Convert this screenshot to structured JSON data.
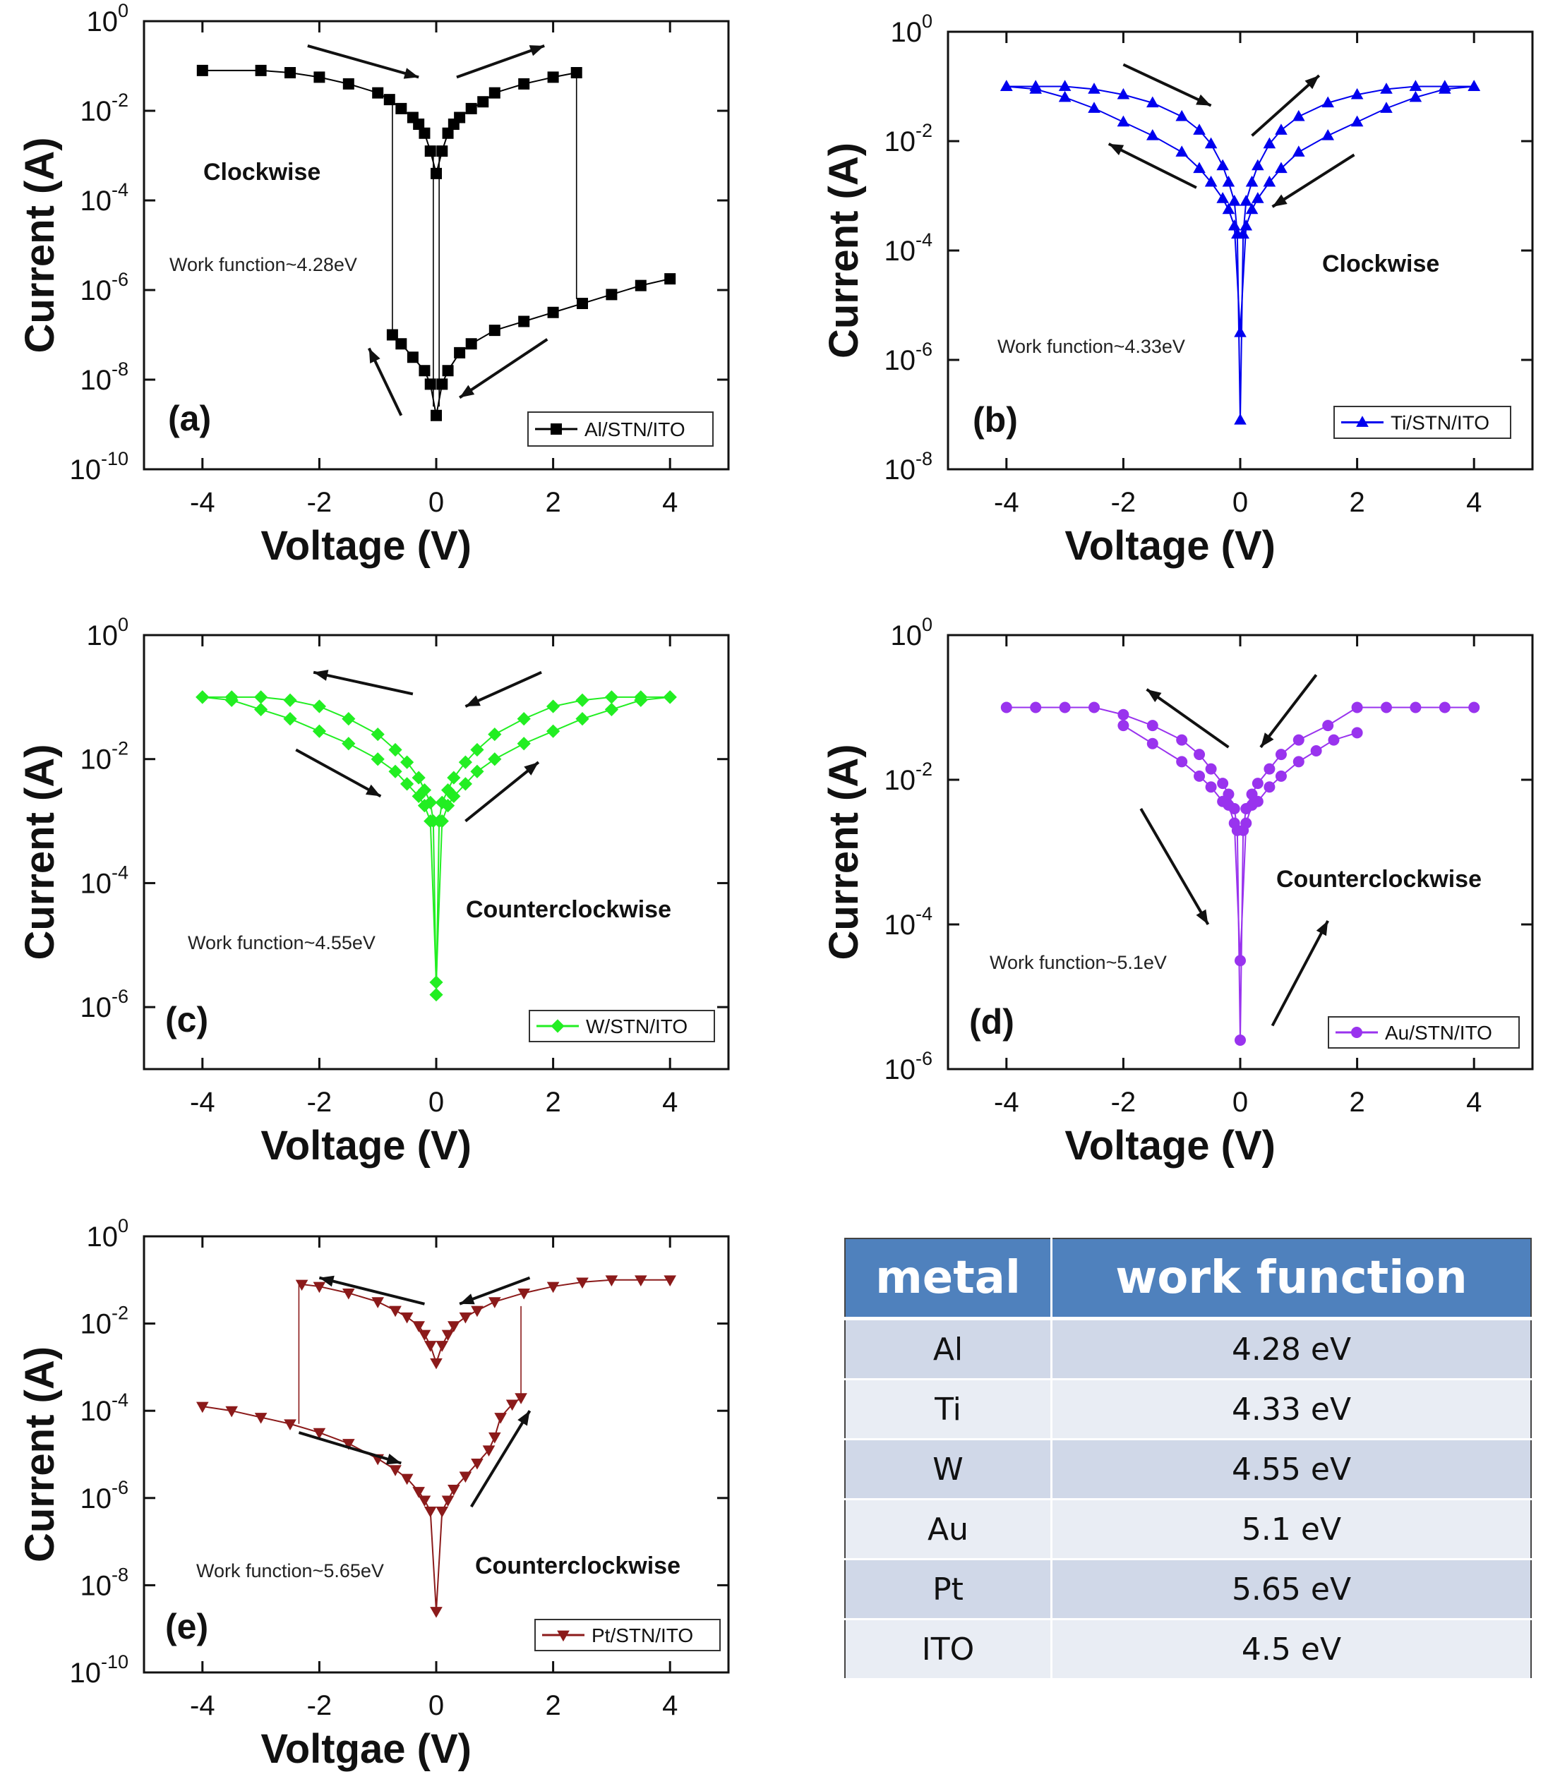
{
  "chart_data": [
    {
      "id": "a",
      "type": "scatter",
      "panel_label": "(a)",
      "xlabel": "Voltage (V)",
      "ylabel": "Current (A)",
      "xlim": [
        -5,
        5
      ],
      "ylim_log10": [
        -10,
        0
      ],
      "xticks": [
        -4,
        -2,
        0,
        2,
        4
      ],
      "yticks_log10": [
        0,
        -2,
        -4,
        -6,
        -8,
        -10
      ],
      "direction": "Clockwise",
      "work_function_text": "Work function~4.28eV",
      "legend": "Al/STN/ITO",
      "color": "#000000",
      "marker": "square",
      "direction_pos": "upper-left",
      "wf_pos": "left-middle",
      "series": [
        {
          "name": "Al/STN/ITO LRS",
          "x": [
            -4,
            -3,
            -2.5,
            -2,
            -1.5,
            -1,
            -0.8,
            -0.6,
            -0.4,
            -0.3,
            -0.2,
            -0.1,
            0,
            0.1,
            0.2,
            0.3,
            0.4,
            0.6,
            0.8,
            1,
            1.5,
            2,
            2.4
          ],
          "log10_y": [
            -1.1,
            -1.1,
            -1.15,
            -1.25,
            -1.4,
            -1.6,
            -1.75,
            -1.95,
            -2.15,
            -2.3,
            -2.5,
            -2.9,
            -3.4,
            -2.9,
            -2.5,
            -2.3,
            -2.15,
            -1.95,
            -1.8,
            -1.6,
            -1.4,
            -1.25,
            -1.15
          ]
        },
        {
          "name": "Al/STN/ITO HRS",
          "x": [
            -0.75,
            -0.6,
            -0.4,
            -0.2,
            -0.1,
            0,
            0.1,
            0.2,
            0.4,
            0.6,
            1,
            1.5,
            2,
            2.5,
            3,
            3.5,
            4
          ],
          "log10_y": [
            -7.0,
            -7.2,
            -7.5,
            -7.8,
            -8.1,
            -8.8,
            -8.1,
            -7.8,
            -7.4,
            -7.2,
            -6.9,
            -6.7,
            -6.5,
            -6.3,
            -6.1,
            -5.9,
            -5.75
          ]
        }
      ],
      "switching_lines": [
        {
          "x": -0.75,
          "log10_y_from": -1.75,
          "log10_y_to": -7.0
        },
        {
          "x": 2.4,
          "log10_y_from": -1.15,
          "log10_y_to": -6.2
        },
        {
          "x": -0.05,
          "log10_y_from": -3.0,
          "log10_y_to": -8.6
        },
        {
          "x": 0.05,
          "log10_y_from": -3.0,
          "log10_y_to": -8.6
        }
      ]
    },
    {
      "id": "b",
      "type": "scatter",
      "panel_label": "(b)",
      "xlabel": "Voltage (V)",
      "ylabel": "Current (A)",
      "xlim": [
        -5,
        5
      ],
      "ylim_log10": [
        -8,
        0
      ],
      "xticks": [
        -4,
        -2,
        0,
        2,
        4
      ],
      "yticks_log10": [
        0,
        -2,
        -4,
        -6,
        -8
      ],
      "direction": "Clockwise",
      "work_function_text": "Work function~4.33eV",
      "legend": "Ti/STN/ITO",
      "color": "#0000ee",
      "marker": "triangle",
      "direction_pos": "right-middle",
      "wf_pos": "left-lower",
      "series": [
        {
          "name": "Ti/STN/ITO sweep 1",
          "x": [
            -4,
            -3.5,
            -3,
            -2.5,
            -2,
            -1.5,
            -1,
            -0.7,
            -0.5,
            -0.3,
            -0.2,
            -0.1,
            -0.05,
            0,
            0.05,
            0.1,
            0.2,
            0.3,
            0.5,
            0.7,
            1,
            1.5,
            2,
            2.5,
            3,
            3.5,
            4
          ],
          "log10_y": [
            -1,
            -1,
            -1,
            -1.05,
            -1.15,
            -1.3,
            -1.55,
            -1.8,
            -2.05,
            -2.45,
            -2.75,
            -3.1,
            -3.7,
            -7.1,
            -3.7,
            -3.1,
            -2.75,
            -2.45,
            -2.05,
            -1.8,
            -1.55,
            -1.3,
            -1.15,
            -1.05,
            -1,
            -1,
            -1
          ]
        },
        {
          "name": "Ti/STN/ITO sweep 2",
          "x": [
            -4,
            -3.5,
            -3,
            -2.5,
            -2,
            -1.5,
            -1,
            -0.7,
            -0.5,
            -0.3,
            -0.2,
            -0.1,
            0,
            0.1,
            0.2,
            0.3,
            0.5,
            0.7,
            1,
            1.5,
            2,
            2.5,
            3,
            3.5,
            4
          ],
          "log10_y": [
            -1,
            -1.05,
            -1.2,
            -1.4,
            -1.65,
            -1.9,
            -2.2,
            -2.5,
            -2.75,
            -3.05,
            -3.25,
            -3.55,
            -5.5,
            -3.55,
            -3.25,
            -3.05,
            -2.75,
            -2.5,
            -2.2,
            -1.9,
            -1.65,
            -1.4,
            -1.2,
            -1.05,
            -1
          ]
        }
      ]
    },
    {
      "id": "c",
      "type": "scatter",
      "panel_label": "(c)",
      "xlabel": "Voltage (V)",
      "ylabel": "Current (A)",
      "xlim": [
        -5,
        5
      ],
      "ylim_log10": [
        -7,
        0
      ],
      "xticks": [
        -4,
        -2,
        0,
        2,
        4
      ],
      "yticks_log10": [
        0,
        -2,
        -4,
        -6
      ],
      "direction": "Counterclockwise",
      "work_function_text": "Work function~4.55eV",
      "legend": "W/STN/ITO",
      "color": "#22ee22",
      "marker": "diamond",
      "direction_pos": "right-middle",
      "wf_pos": "left-lower",
      "series": [
        {
          "name": "W/STN/ITO sweep 1",
          "x": [
            -4,
            -3.5,
            -3,
            -2.5,
            -2,
            -1.5,
            -1,
            -0.7,
            -0.5,
            -0.3,
            -0.2,
            -0.1,
            -0.05,
            0,
            0.05,
            0.1,
            0.2,
            0.3,
            0.5,
            0.7,
            1,
            1.5,
            2,
            2.5,
            3,
            3.5,
            4
          ],
          "log10_y": [
            -1,
            -1,
            -1,
            -1.05,
            -1.15,
            -1.35,
            -1.6,
            -1.85,
            -2.05,
            -2.3,
            -2.5,
            -2.7,
            -3.0,
            -5.8,
            -3.0,
            -2.7,
            -2.5,
            -2.3,
            -2.05,
            -1.85,
            -1.6,
            -1.35,
            -1.15,
            -1.05,
            -1,
            -1,
            -1
          ]
        },
        {
          "name": "W/STN/ITO sweep 2",
          "x": [
            -4,
            -3.5,
            -3,
            -2.5,
            -2,
            -1.5,
            -1,
            -0.7,
            -0.5,
            -0.3,
            -0.2,
            -0.1,
            0,
            0.1,
            0.2,
            0.3,
            0.5,
            0.7,
            1,
            1.5,
            2,
            2.5,
            3,
            3.5,
            4
          ],
          "log10_y": [
            -1,
            -1.05,
            -1.2,
            -1.35,
            -1.55,
            -1.75,
            -2.0,
            -2.2,
            -2.4,
            -2.6,
            -2.75,
            -3.0,
            -5.6,
            -3.0,
            -2.75,
            -2.6,
            -2.4,
            -2.2,
            -2.0,
            -1.75,
            -1.55,
            -1.35,
            -1.2,
            -1.05,
            -1
          ]
        }
      ]
    },
    {
      "id": "d",
      "type": "scatter",
      "panel_label": "(d)",
      "xlabel": "Voltage (V)",
      "ylabel": "Current (A)",
      "xlim": [
        -5,
        5
      ],
      "ylim_log10": [
        -6,
        0
      ],
      "xticks": [
        -4,
        -2,
        0,
        2,
        4
      ],
      "yticks_log10": [
        0,
        -2,
        -4,
        -6
      ],
      "direction": "Counterclockwise",
      "work_function_text": "Work function~5.1eV",
      "legend": "Au/STN/ITO",
      "color": "#9933ee",
      "marker": "circle",
      "direction_pos": "right-middle",
      "wf_pos": "left-lower",
      "series": [
        {
          "name": "Au/STN/ITO sweep 1",
          "x": [
            -4,
            -3.5,
            -3,
            -2.5,
            -2,
            -1.5,
            -1,
            -0.7,
            -0.5,
            -0.3,
            -0.2,
            -0.1,
            -0.05,
            0,
            0.05,
            0.1,
            0.2,
            0.3,
            0.5,
            0.7,
            1,
            1.5,
            2,
            2.5,
            3,
            3.5,
            4
          ],
          "log10_y": [
            -1,
            -1,
            -1,
            -1,
            -1.1,
            -1.25,
            -1.45,
            -1.65,
            -1.85,
            -2.05,
            -2.2,
            -2.4,
            -2.7,
            -5.6,
            -2.7,
            -2.4,
            -2.2,
            -2.05,
            -1.85,
            -1.65,
            -1.45,
            -1.25,
            -1,
            -1,
            -1,
            -1,
            -1
          ]
        },
        {
          "name": "Au/STN/ITO sweep 2",
          "x": [
            -2,
            -1.5,
            -1,
            -0.7,
            -0.5,
            -0.3,
            -0.2,
            -0.1,
            0,
            0.1,
            0.2,
            0.3,
            0.5,
            0.7,
            1,
            1.3,
            1.6,
            2
          ],
          "log10_y": [
            -1.25,
            -1.5,
            -1.75,
            -1.95,
            -2.1,
            -2.3,
            -2.35,
            -2.6,
            -4.5,
            -2.6,
            -2.35,
            -2.3,
            -2.1,
            -1.95,
            -1.75,
            -1.6,
            -1.45,
            -1.35
          ]
        }
      ]
    },
    {
      "id": "e",
      "type": "scatter",
      "panel_label": "(e)",
      "xlabel": "Voltgae (V)",
      "ylabel": "Current (A)",
      "xlim": [
        -5,
        5
      ],
      "ylim_log10": [
        -10,
        0
      ],
      "xticks": [
        -4,
        -2,
        0,
        2,
        4
      ],
      "yticks_log10": [
        0,
        -2,
        -4,
        -6,
        -8,
        -10
      ],
      "direction": "Counterclockwise",
      "work_function_text": "Work function~5.65eV",
      "legend": "Pt/STN/ITO",
      "color": "#8b1a1a",
      "marker": "triangle-down",
      "direction_pos": "right-lower",
      "wf_pos": "left-lower",
      "series": [
        {
          "name": "Pt/STN/ITO LRS",
          "x": [
            -2.3,
            -2,
            -1.5,
            -1,
            -0.7,
            -0.5,
            -0.3,
            -0.2,
            -0.1,
            0,
            0.1,
            0.2,
            0.3,
            0.5,
            0.7,
            1,
            1.5,
            2,
            2.5,
            3,
            3.5,
            4
          ],
          "log10_y": [
            -1.1,
            -1.15,
            -1.3,
            -1.5,
            -1.7,
            -1.85,
            -2.05,
            -2.25,
            -2.5,
            -2.9,
            -2.5,
            -2.25,
            -2.05,
            -1.85,
            -1.7,
            -1.5,
            -1.3,
            -1.15,
            -1.05,
            -1,
            -1,
            -1
          ]
        },
        {
          "name": "Pt/STN/ITO HRS",
          "x": [
            -4,
            -3.5,
            -3,
            -2.5,
            -2,
            -1.5,
            -1,
            -0.7,
            -0.5,
            -0.3,
            -0.2,
            -0.1,
            0,
            0.1,
            0.2,
            0.3,
            0.5,
            0.7,
            0.9,
            1.0,
            1.1,
            1.3,
            1.45
          ],
          "log10_y": [
            -3.9,
            -4.0,
            -4.15,
            -4.3,
            -4.5,
            -4.75,
            -5.1,
            -5.35,
            -5.55,
            -5.85,
            -6.05,
            -6.3,
            -8.6,
            -6.3,
            -6.05,
            -5.8,
            -5.5,
            -5.2,
            -4.9,
            -4.6,
            -4.15,
            -3.85,
            -3.7
          ]
        }
      ],
      "switching_lines": [
        {
          "x": -2.35,
          "log10_y_from": -1.1,
          "log10_y_to": -4.3
        },
        {
          "x": 1.45,
          "log10_y_from": -3.7,
          "log10_y_to": -1.6
        }
      ]
    }
  ],
  "work_function_table": {
    "headers": [
      "metal",
      "work function"
    ],
    "rows": [
      [
        "Al",
        "4.28 eV"
      ],
      [
        "Ti",
        "4.33 eV"
      ],
      [
        "W",
        "4.55 eV"
      ],
      [
        "Au",
        "5.1 eV"
      ],
      [
        "Pt",
        "5.65 eV"
      ],
      [
        "ITO",
        "4.5 eV"
      ]
    ]
  }
}
